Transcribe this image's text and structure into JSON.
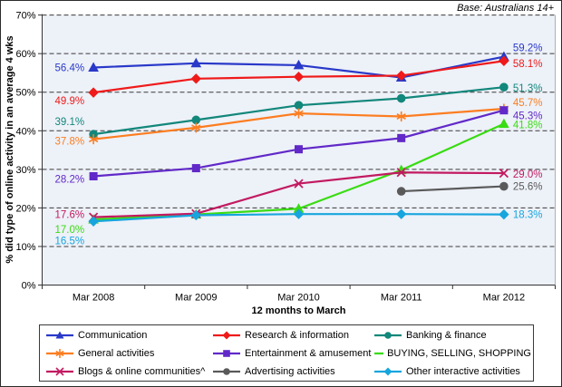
{
  "base_note": "Base: Australians 14+",
  "chart_data": {
    "type": "line",
    "title": "",
    "xlabel": "12 months to March",
    "ylabel": "% did type of online activity in an average 4 wks",
    "categories": [
      "Mar 2008",
      "Mar 2009",
      "Mar 2010",
      "Mar 2011",
      "Mar 2012"
    ],
    "ylim": [
      0,
      70
    ],
    "ytick_labels": [
      "0%",
      "10%",
      "20%",
      "30%",
      "40%",
      "50%",
      "60%",
      "70%"
    ],
    "grid": "horizontal-dashed",
    "legend_position": "bottom",
    "plot_bg": "#edf1f8",
    "series": [
      {
        "name": "Communication",
        "color": "#2939c8",
        "marker": "triangle",
        "values": [
          56.4,
          57.5,
          57.0,
          53.8,
          59.2
        ],
        "start_label": "56.4%",
        "end_label": "59.2%"
      },
      {
        "name": "Research & information",
        "color": "#ef1a1a",
        "marker": "diamond",
        "values": [
          49.9,
          53.5,
          54.0,
          54.3,
          58.1
        ],
        "start_label": "49.9%",
        "end_label": "58.1%"
      },
      {
        "name": "Banking & finance",
        "color": "#12877b",
        "marker": "circle",
        "values": [
          39.1,
          42.8,
          46.6,
          48.4,
          51.3
        ],
        "start_label": "39.1%",
        "end_label": "51.3%"
      },
      {
        "name": "General activities",
        "color": "#fc7d20",
        "marker": "asterisk",
        "values": [
          37.8,
          40.8,
          44.5,
          43.7,
          45.7
        ],
        "start_label": "37.8%",
        "end_label": "45.7%"
      },
      {
        "name": "Entertainment & amusement",
        "color": "#6129c8",
        "marker": "square",
        "values": [
          28.2,
          30.3,
          35.2,
          38.1,
          45.3
        ],
        "start_label": "28.2%",
        "end_label": "45.3%"
      },
      {
        "name": "BUYING, SELLING, SHOPPING",
        "color": "#39dc12",
        "marker": "triangle",
        "values": [
          17.0,
          18.3,
          19.8,
          29.8,
          41.8
        ],
        "start_label": "17.0%",
        "end_label": "41.8%"
      },
      {
        "name": "Blogs & online communities^",
        "color": "#c21a61",
        "marker": "x",
        "values": [
          17.6,
          18.5,
          26.3,
          29.2,
          29.0
        ],
        "start_label": "17.6%",
        "end_label": "29.0%"
      },
      {
        "name": "Advertising activities",
        "color": "#5a5a5a",
        "marker": "circle",
        "values": [
          null,
          null,
          null,
          24.3,
          25.6
        ],
        "start_label": "",
        "end_label": "25.6%"
      },
      {
        "name": "Other interactive activities",
        "color": "#17a5de",
        "marker": "diamond",
        "values": [
          16.5,
          18.1,
          18.4,
          18.4,
          18.3
        ],
        "start_label": "16.5%",
        "end_label": "18.3%"
      }
    ]
  }
}
